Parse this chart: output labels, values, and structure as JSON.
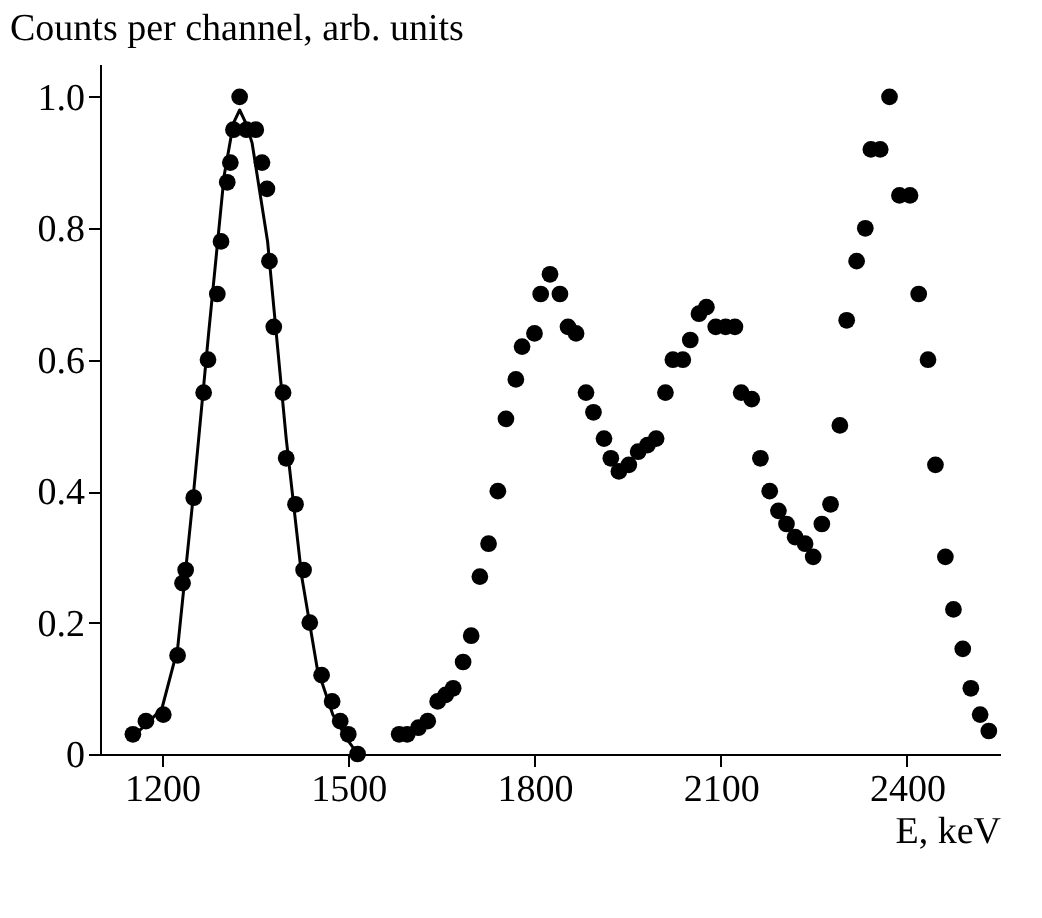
{
  "chart_data": {
    "type": "scatter",
    "title": "Counts per channel, arb. units",
    "xlabel": "E, keV",
    "xlim": [
      1100,
      2550
    ],
    "xticks": [
      1200,
      1500,
      1800,
      2100,
      2400
    ],
    "ylim": [
      0,
      1.05
    ],
    "yticks": [
      0,
      {
        "value": 0.2,
        "label": "0.2"
      },
      {
        "value": 0.4,
        "label": "0.4"
      },
      {
        "value": 0.6,
        "label": "0.6"
      },
      {
        "value": 0.8,
        "label": "0.8"
      },
      {
        "value": 1.0,
        "label": "1.0"
      }
    ],
    "grid": false,
    "marker": "circle",
    "series": [
      {
        "color": "#000000",
        "x": [
          1153,
          1174,
          1202,
          1225,
          1233,
          1238,
          1251,
          1267,
          1274,
          1289,
          1295,
          1305,
          1310,
          1315,
          1325,
          1336,
          1351,
          1361,
          1369,
          1373,
          1380,
          1395,
          1400,
          1415,
          1428,
          1438,
          1457,
          1474,
          1487,
          1500,
          1515,
          1582,
          1595,
          1613,
          1628,
          1644,
          1657,
          1669,
          1685,
          1698,
          1712,
          1726,
          1741,
          1754,
          1770,
          1780,
          1800,
          1810,
          1825,
          1841,
          1854,
          1867,
          1883,
          1895,
          1912,
          1923,
          1936,
          1952,
          1967,
          1982,
          1996,
          2011,
          2023,
          2039,
          2051,
          2065,
          2077,
          2092,
          2108,
          2123,
          2133,
          2150,
          2164,
          2179,
          2193,
          2206,
          2220,
          2236,
          2249,
          2263,
          2277,
          2292,
          2303,
          2319,
          2333,
          2342,
          2357,
          2372,
          2388,
          2405,
          2419,
          2434,
          2446,
          2462,
          2475,
          2490,
          2503,
          2518,
          2532
        ],
        "values": [
          0.03,
          0.05,
          0.06,
          0.15,
          0.26,
          0.28,
          0.39,
          0.55,
          0.6,
          0.7,
          0.78,
          0.87,
          0.9,
          0.95,
          1.0,
          0.95,
          0.95,
          0.9,
          0.86,
          0.75,
          0.65,
          0.55,
          0.45,
          0.38,
          0.28,
          0.2,
          0.12,
          0.08,
          0.05,
          0.03,
          0.0,
          0.03,
          0.03,
          0.04,
          0.05,
          0.08,
          0.09,
          0.1,
          0.14,
          0.18,
          0.27,
          0.32,
          0.4,
          0.51,
          0.57,
          0.62,
          0.64,
          0.7,
          0.73,
          0.7,
          0.65,
          0.64,
          0.55,
          0.52,
          0.48,
          0.45,
          0.43,
          0.44,
          0.46,
          0.47,
          0.48,
          0.55,
          0.6,
          0.6,
          0.63,
          0.67,
          0.68,
          0.65,
          0.65,
          0.65,
          0.55,
          0.54,
          0.45,
          0.4,
          0.37,
          0.35,
          0.33,
          0.32,
          0.3,
          0.35,
          0.38,
          0.5,
          0.66,
          0.75,
          0.8,
          0.92,
          0.92,
          1.0,
          0.85,
          0.85,
          0.7,
          0.6,
          0.44,
          0.3,
          0.22,
          0.16,
          0.1,
          0.06,
          0.035
        ]
      },
      {
        "type": "line",
        "color": "#000000",
        "marker": "none",
        "line_style": "solid",
        "x": [
          1150,
          1175,
          1200,
          1225,
          1250,
          1275,
          1300,
          1315,
          1325,
          1335,
          1345,
          1370,
          1400,
          1425,
          1450,
          1475,
          1500,
          1515
        ],
        "values": [
          0.025,
          0.045,
          0.07,
          0.16,
          0.39,
          0.64,
          0.88,
          0.96,
          0.98,
          0.96,
          0.93,
          0.78,
          0.48,
          0.27,
          0.13,
          0.06,
          0.02,
          0.0
        ]
      }
    ]
  }
}
